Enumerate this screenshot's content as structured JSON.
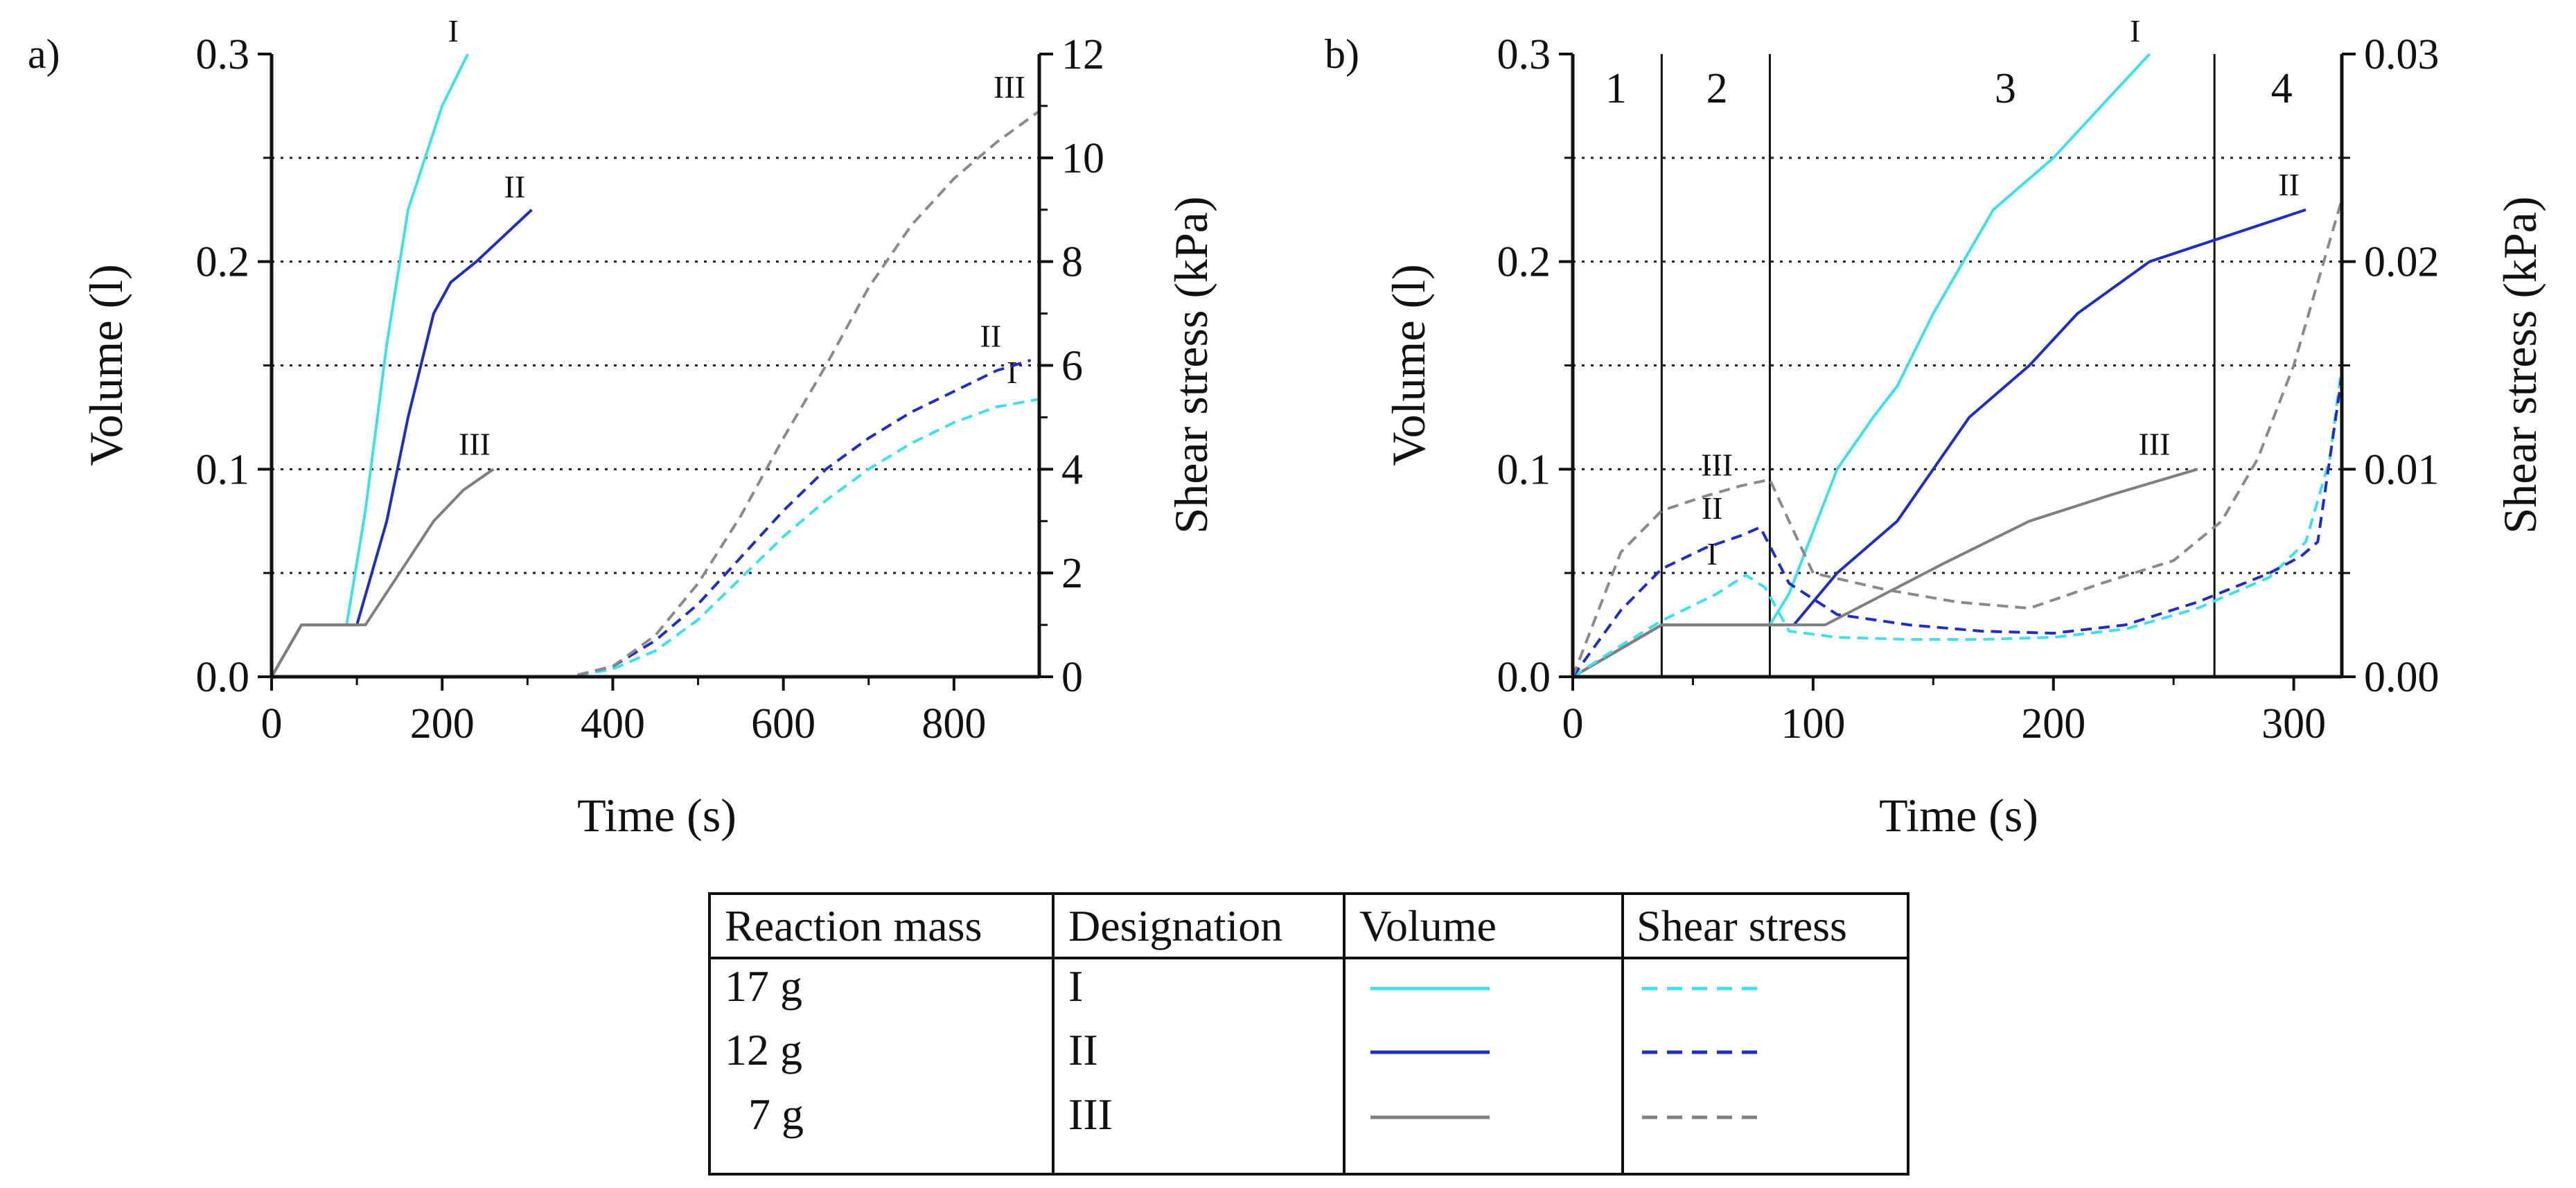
{
  "chart_data": [
    {
      "id": "a",
      "panel_label": "a)",
      "type": "line",
      "xlabel": "Time (s)",
      "ylabel_left": "Volume (l)",
      "ylabel_right": "Shear stress (kPa)",
      "xlim": [
        0,
        900
      ],
      "ylim_left": [
        0,
        0.3
      ],
      "ylim_right": [
        0,
        12
      ],
      "xticks": [
        0,
        200,
        400,
        600,
        800
      ],
      "xtick_labels": [
        "0",
        "200",
        "400",
        "600",
        "800"
      ],
      "yticks_left": [
        0,
        0.1,
        0.2,
        0.3
      ],
      "ytick_labels_left": [
        "0.0",
        "0.1",
        "0.2",
        "0.3"
      ],
      "yticks_right": [
        0,
        2,
        4,
        6,
        8,
        10,
        12
      ],
      "ytick_labels_right": [
        "0",
        "2",
        "4",
        "6",
        "8",
        "10",
        "12"
      ],
      "hgrid_left": [
        0.05,
        0.1,
        0.15,
        0.2,
        0.25
      ],
      "series": [
        {
          "name": "Volume I",
          "label": "I",
          "axis": "left",
          "style": "solid",
          "color": "#40DFEA",
          "x": [
            0,
            35,
            88,
            110,
            135,
            160,
            180,
            200,
            230
          ],
          "y": [
            0,
            0.025,
            0.025,
            0.08,
            0.16,
            0.225,
            0.25,
            0.275,
            0.3
          ],
          "label_at": [
            213,
            0.302
          ]
        },
        {
          "name": "Volume II",
          "label": "II",
          "axis": "left",
          "style": "solid",
          "color": "#1F2EBD",
          "x": [
            0,
            35,
            100,
            135,
            160,
            190,
            210,
            240,
            305
          ],
          "y": [
            0,
            0.025,
            0.025,
            0.075,
            0.125,
            0.175,
            0.19,
            0.2,
            0.225
          ],
          "label_at": [
            285,
            0.227
          ]
        },
        {
          "name": "Volume III",
          "label": "III",
          "axis": "left",
          "style": "solid",
          "color": "#7F7F7F",
          "x": [
            0,
            35,
            110,
            150,
            190,
            225,
            260
          ],
          "y": [
            0,
            0.025,
            0.025,
            0.05,
            0.075,
            0.09,
            0.1
          ],
          "label_at": [
            238,
            0.103
          ]
        },
        {
          "name": "Shear stress I",
          "label": "I",
          "axis": "right",
          "style": "dashed",
          "color": "#40DFEA",
          "x": [
            0,
            350,
            400,
            450,
            500,
            550,
            600,
            650,
            700,
            750,
            800,
            850,
            900
          ],
          "y": [
            0,
            0,
            0.15,
            0.5,
            1.1,
            1.9,
            2.7,
            3.4,
            4.0,
            4.5,
            4.9,
            5.2,
            5.35
          ],
          "label_at": [
            868,
            5.5
          ]
        },
        {
          "name": "Shear stress II",
          "label": "II",
          "axis": "right",
          "style": "dashed",
          "color": "#1F2EBD",
          "x": [
            0,
            350,
            400,
            450,
            500,
            550,
            600,
            650,
            700,
            750,
            800,
            850,
            890
          ],
          "y": [
            0,
            0,
            0.2,
            0.7,
            1.4,
            2.3,
            3.2,
            4.0,
            4.6,
            5.1,
            5.5,
            5.9,
            6.1
          ],
          "label_at": [
            843,
            6.2
          ]
        },
        {
          "name": "Shear stress III",
          "label": "III",
          "axis": "right",
          "style": "dashed",
          "color": "#8A8A8A",
          "x": [
            0,
            350,
            400,
            450,
            500,
            550,
            600,
            650,
            700,
            750,
            800,
            850,
            900
          ],
          "y": [
            0,
            0,
            0.2,
            0.8,
            1.8,
            3.1,
            4.6,
            6.0,
            7.5,
            8.7,
            9.6,
            10.3,
            10.9
          ],
          "label_at": [
            865,
            11.0
          ]
        }
      ]
    },
    {
      "id": "b",
      "panel_label": "b)",
      "type": "line",
      "xlabel": "Time (s)",
      "ylabel_left": "Volume (l)",
      "ylabel_right": "Shear stress (kPa)",
      "xlim": [
        0,
        320
      ],
      "ylim_left": [
        0,
        0.3
      ],
      "ylim_right": [
        0,
        0.03
      ],
      "xticks": [
        0,
        100,
        200,
        300
      ],
      "xtick_labels": [
        "0",
        "100",
        "200",
        "300"
      ],
      "yticks_left": [
        0,
        0.1,
        0.2,
        0.3
      ],
      "ytick_labels_left": [
        "0.0",
        "0.1",
        "0.2",
        "0.3"
      ],
      "yticks_right": [
        0,
        0.01,
        0.02,
        0.03
      ],
      "ytick_labels_right": [
        "0.00",
        "0.01",
        "0.02",
        "0.03"
      ],
      "hgrid_left": [
        0.05,
        0.1,
        0.15,
        0.2,
        0.25
      ],
      "region_dividers": [
        37,
        82,
        267
      ],
      "region_labels": [
        {
          "text": "1",
          "x": 18
        },
        {
          "text": "2",
          "x": 60
        },
        {
          "text": "3",
          "x": 180
        },
        {
          "text": "4",
          "x": 295
        }
      ],
      "series": [
        {
          "name": "Volume I",
          "label": "I",
          "axis": "left",
          "style": "solid",
          "color": "#40DFEA",
          "x": [
            0,
            37,
            82,
            90,
            110,
            125,
            135,
            150,
            175,
            200,
            220,
            240
          ],
          "y": [
            0,
            0.025,
            0.025,
            0.04,
            0.1,
            0.125,
            0.14,
            0.175,
            0.225,
            0.25,
            0.275,
            0.3
          ],
          "label_at": [
            234,
            0.302
          ]
        },
        {
          "name": "Volume II",
          "label": "II",
          "axis": "left",
          "style": "solid",
          "color": "#1F2EBD",
          "x": [
            0,
            37,
            92,
            110,
            135,
            150,
            165,
            190,
            210,
            240,
            305
          ],
          "y": [
            0,
            0.025,
            0.025,
            0.05,
            0.075,
            0.1,
            0.125,
            0.15,
            0.175,
            0.2,
            0.225
          ],
          "label_at": [
            298,
            0.228
          ]
        },
        {
          "name": "Volume III",
          "label": "III",
          "axis": "left",
          "style": "solid",
          "color": "#7F7F7F",
          "x": [
            0,
            37,
            105,
            130,
            155,
            190,
            225,
            260
          ],
          "y": [
            0,
            0.025,
            0.025,
            0.04,
            0.055,
            0.075,
            0.088,
            0.1
          ],
          "label_at": [
            242,
            0.103
          ]
        },
        {
          "name": "Shear stress I",
          "label": "I",
          "axis": "right",
          "style": "dashed",
          "color": "#40DFEA",
          "x": [
            0,
            20,
            37,
            60,
            72,
            80,
            90,
            110,
            140,
            170,
            200,
            230,
            260,
            290,
            305,
            315,
            320
          ],
          "y": [
            0,
            0.0015,
            0.0027,
            0.004,
            0.0049,
            0.0043,
            0.0022,
            0.0019,
            0.0018,
            0.0018,
            0.0019,
            0.0023,
            0.0033,
            0.0048,
            0.0065,
            0.0105,
            0.015
          ],
          "label_at": [
            58,
            0.005
          ]
        },
        {
          "name": "Shear stress II",
          "label": "II",
          "axis": "right",
          "style": "dashed",
          "color": "#1F2EBD",
          "x": [
            0,
            20,
            37,
            55,
            70,
            78,
            90,
            110,
            140,
            170,
            200,
            230,
            260,
            290,
            303,
            310,
            320
          ],
          "y": [
            0,
            0.0032,
            0.0052,
            0.0062,
            0.0068,
            0.0072,
            0.0045,
            0.003,
            0.0025,
            0.0022,
            0.0021,
            0.0025,
            0.0036,
            0.005,
            0.0058,
            0.0065,
            0.0145
          ],
          "label_at": [
            58,
            0.0072
          ]
        },
        {
          "name": "Shear stress III",
          "label": "III",
          "axis": "right",
          "style": "dashed",
          "color": "#8A8A8A",
          "x": [
            0,
            20,
            37,
            55,
            70,
            82,
            100,
            130,
            160,
            190,
            220,
            250,
            270,
            285,
            300,
            310,
            320
          ],
          "y": [
            0,
            0.006,
            0.008,
            0.0087,
            0.0092,
            0.0095,
            0.005,
            0.0042,
            0.0036,
            0.0033,
            0.0045,
            0.0056,
            0.0075,
            0.0105,
            0.015,
            0.019,
            0.023
          ],
          "label_at": [
            60,
            0.0093
          ]
        }
      ]
    }
  ],
  "legend_table": {
    "headers": [
      "Reaction mass",
      "Designation",
      "Volume",
      "Shear stress"
    ],
    "rows": [
      {
        "mass": "17 g",
        "designation": "I",
        "color": "#40DFEA"
      },
      {
        "mass": "12 g",
        "designation": "II",
        "color": "#1F2EBD"
      },
      {
        "mass": "7 g",
        "designation": "III",
        "color": "#7F7F7F"
      }
    ]
  }
}
